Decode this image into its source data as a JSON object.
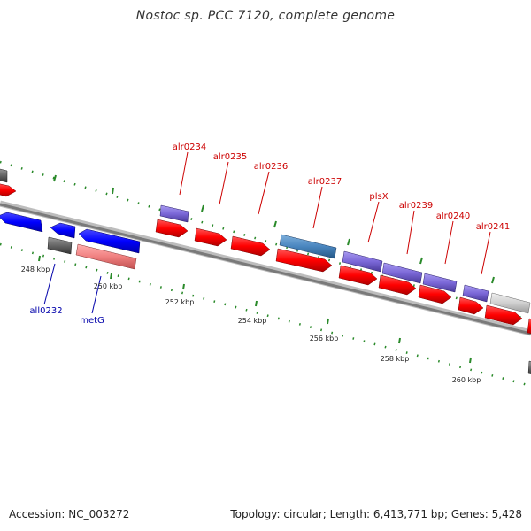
{
  "title": "Nostoc sp. PCC 7120, complete genome",
  "footer": {
    "accession": "Accession: NC_003272",
    "summary": "Topology: circular; Length: 6,413,771 bp; Genes: 5,428"
  },
  "colors": {
    "forward_label": "#cc0000",
    "reverse_label": "#0000aa",
    "backbone": "#8c8c8c",
    "tick": "#2a8a2a"
  },
  "scale_labels": [
    "248 kbp",
    "250 kbp",
    "252 kbp",
    "254 kbp",
    "256 kbp",
    "258 kbp",
    "260 kbp"
  ],
  "forward_gene_labels": [
    "alr0234",
    "alr0235",
    "alr0236",
    "alr0237",
    "plsX",
    "alr0239",
    "alr0240",
    "alr0241"
  ],
  "reverse_gene_labels": [
    "all0232",
    "metG"
  ]
}
